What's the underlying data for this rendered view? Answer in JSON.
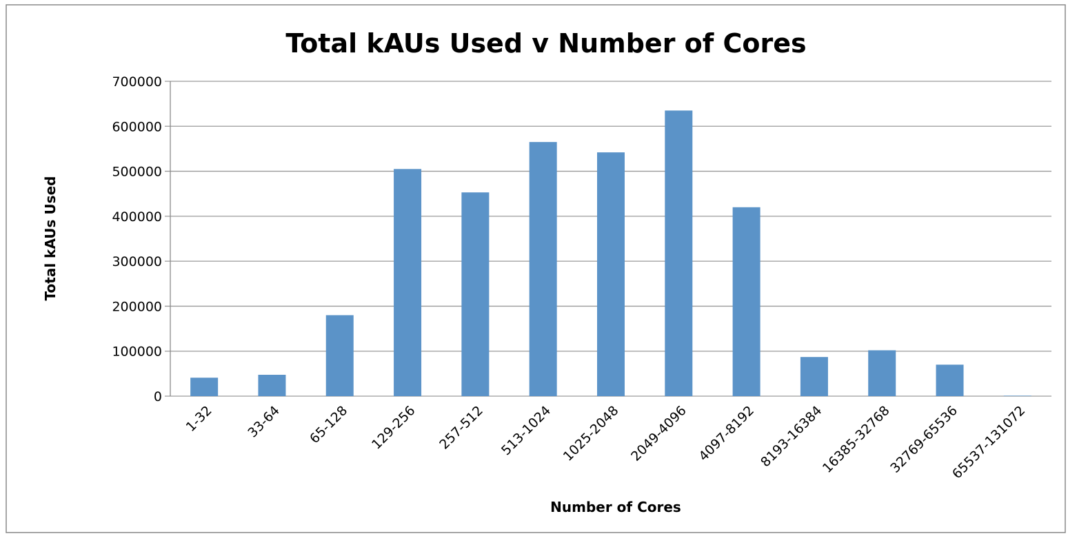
{
  "chart_data": {
    "type": "bar",
    "title": "Total kAUs Used v Number of Cores",
    "xlabel": "Number of Cores",
    "ylabel": "Total kAUs  Used",
    "categories": [
      "1-32",
      "33-64",
      "65-128",
      "129-256",
      "257-512",
      "513-1024",
      "1025-2048",
      "2049-4096",
      "4097-8192",
      "8193-16384",
      "16385-32768",
      "32769-65536",
      "65537-131072"
    ],
    "values": [
      41000,
      47500,
      180000,
      505000,
      453000,
      565000,
      542000,
      635000,
      420000,
      87000,
      102000,
      70000,
      1000
    ],
    "color": "#5b93c8",
    "ylim": [
      0,
      700000
    ],
    "yticks": [
      0,
      100000,
      200000,
      300000,
      400000,
      500000,
      600000,
      700000
    ],
    "grid": true
  }
}
